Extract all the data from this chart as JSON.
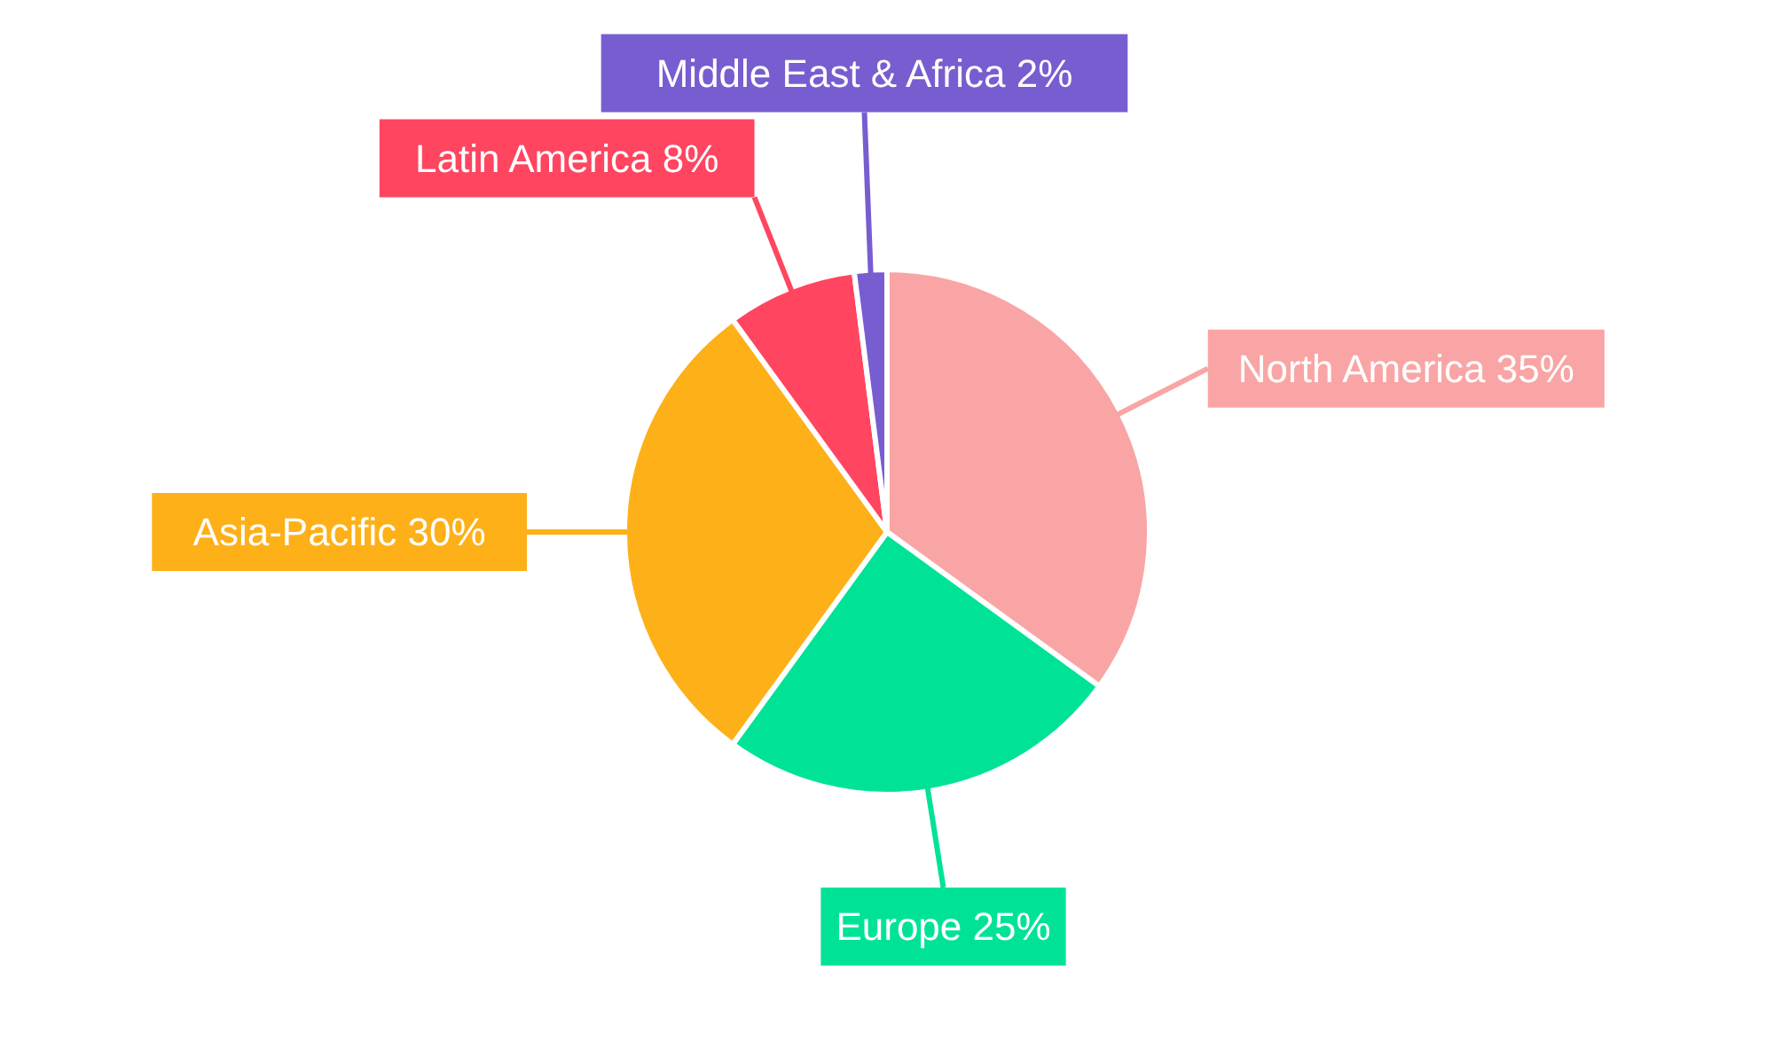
{
  "chart_data": {
    "type": "pie",
    "categories": [
      "North America",
      "Europe",
      "Asia-Pacific",
      "Latin America",
      "Middle East & Africa"
    ],
    "values": [
      35,
      25,
      30,
      8,
      2
    ],
    "colors": [
      "#f9a5a5",
      "#00e396",
      "#feb019",
      "#ff4560",
      "#775dd0"
    ],
    "value_labels": [
      "35%",
      "25%",
      "30%",
      "8%",
      "2%"
    ]
  }
}
